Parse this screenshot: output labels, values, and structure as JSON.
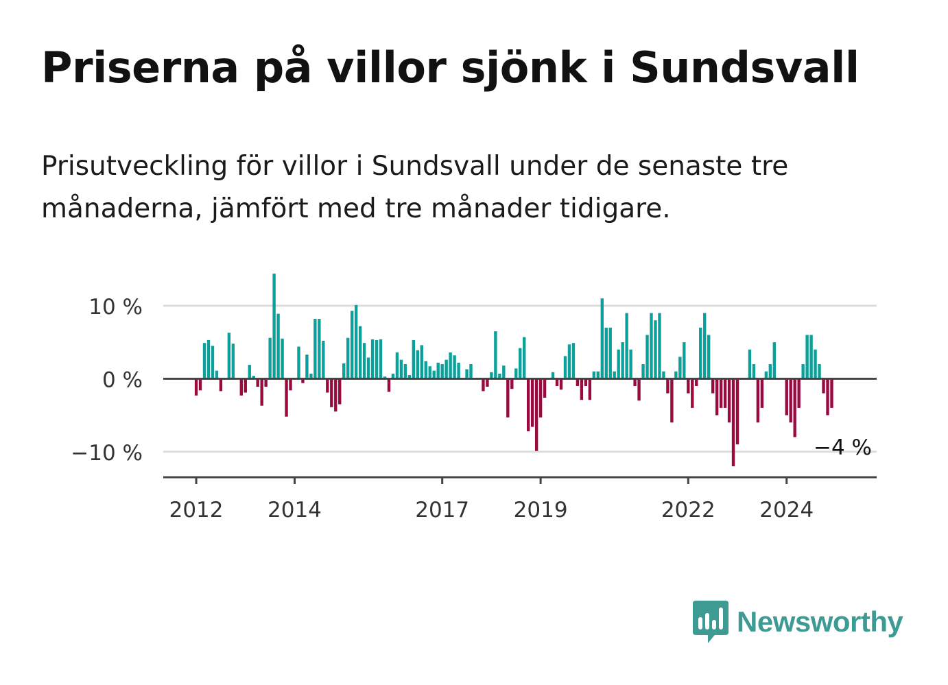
{
  "title": "Priserna på villor sjönk i Sundsvall",
  "subtitle": "Prisutveckling för villor i Sundsvall under de senaste tre månaderna, jämfört med tre månader tidigare.",
  "logo": {
    "name": "Newsworthy",
    "icon": "bar-chart-speech-bubble-icon"
  },
  "colors": {
    "positive": "#0ba09a",
    "negative": "#990b3f",
    "logo": "#3d9b93"
  },
  "chart_data": {
    "type": "bar",
    "unit": "%",
    "ylim": [
      -13.5,
      14.5
    ],
    "xlim": [
      2011.33,
      2025.83
    ],
    "grid": true,
    "yticks": [
      {
        "value": 10,
        "label": "10 %"
      },
      {
        "value": 0,
        "label": "0 %"
      },
      {
        "value": -10,
        "label": "−10 %"
      }
    ],
    "xticks": [
      {
        "value": 2012,
        "label": "2012"
      },
      {
        "value": 2014,
        "label": "2014"
      },
      {
        "value": 2017,
        "label": "2017"
      },
      {
        "value": 2019,
        "label": "2019"
      },
      {
        "value": 2022,
        "label": "2022"
      },
      {
        "value": 2024,
        "label": "2024"
      }
    ],
    "start": "2012-01",
    "values": [
      -2.3,
      -1.6,
      4.9,
      5.3,
      4.5,
      1.1,
      -1.7,
      0,
      6.3,
      4.8,
      0,
      -2.3,
      -1.9,
      1.9,
      0.4,
      -1.1,
      -3.7,
      -1.1,
      5.6,
      14.4,
      8.9,
      5.5,
      -5.2,
      -1.6,
      0,
      4.4,
      -0.6,
      3.3,
      0.7,
      8.2,
      8.2,
      5.2,
      -1.9,
      -3.9,
      -4.5,
      -3.5,
      2.1,
      5.6,
      9.3,
      10.1,
      7.2,
      4.9,
      2.9,
      5.4,
      5.3,
      5.4,
      0.3,
      -1.8,
      0.7,
      3.6,
      2.6,
      2,
      0.5,
      5.3,
      3.9,
      4.6,
      2.4,
      1.7,
      1.1,
      2.2,
      2,
      2.6,
      3.6,
      3.2,
      2.2,
      0,
      1.3,
      2,
      0,
      0,
      -1.7,
      -1.1,
      0.9,
      6.5,
      0.7,
      1.8,
      -5.3,
      -1.4,
      1.4,
      4.2,
      5.7,
      -7.2,
      -6.6,
      -9.9,
      -5.3,
      -2.6,
      0,
      0.9,
      -1,
      -1.5,
      3.1,
      4.7,
      4.9,
      -1,
      -2.9,
      -1,
      -2.9,
      1,
      1,
      11,
      7,
      7,
      1,
      4,
      5,
      9,
      4,
      -1,
      -3,
      2,
      6,
      9,
      8,
      9,
      1,
      -2,
      -6,
      1,
      3,
      5,
      -2,
      -4,
      -1,
      7,
      9,
      6,
      -2,
      -5,
      -4,
      -4,
      -6,
      -12,
      -9,
      0,
      0,
      4,
      2,
      -6,
      -4,
      1,
      2,
      5,
      0,
      0,
      -5,
      -6,
      -8,
      -4,
      2,
      6,
      6,
      4,
      2,
      -2,
      -5,
      -4
    ],
    "annotations": [
      {
        "text": "−4 %"
      }
    ]
  }
}
